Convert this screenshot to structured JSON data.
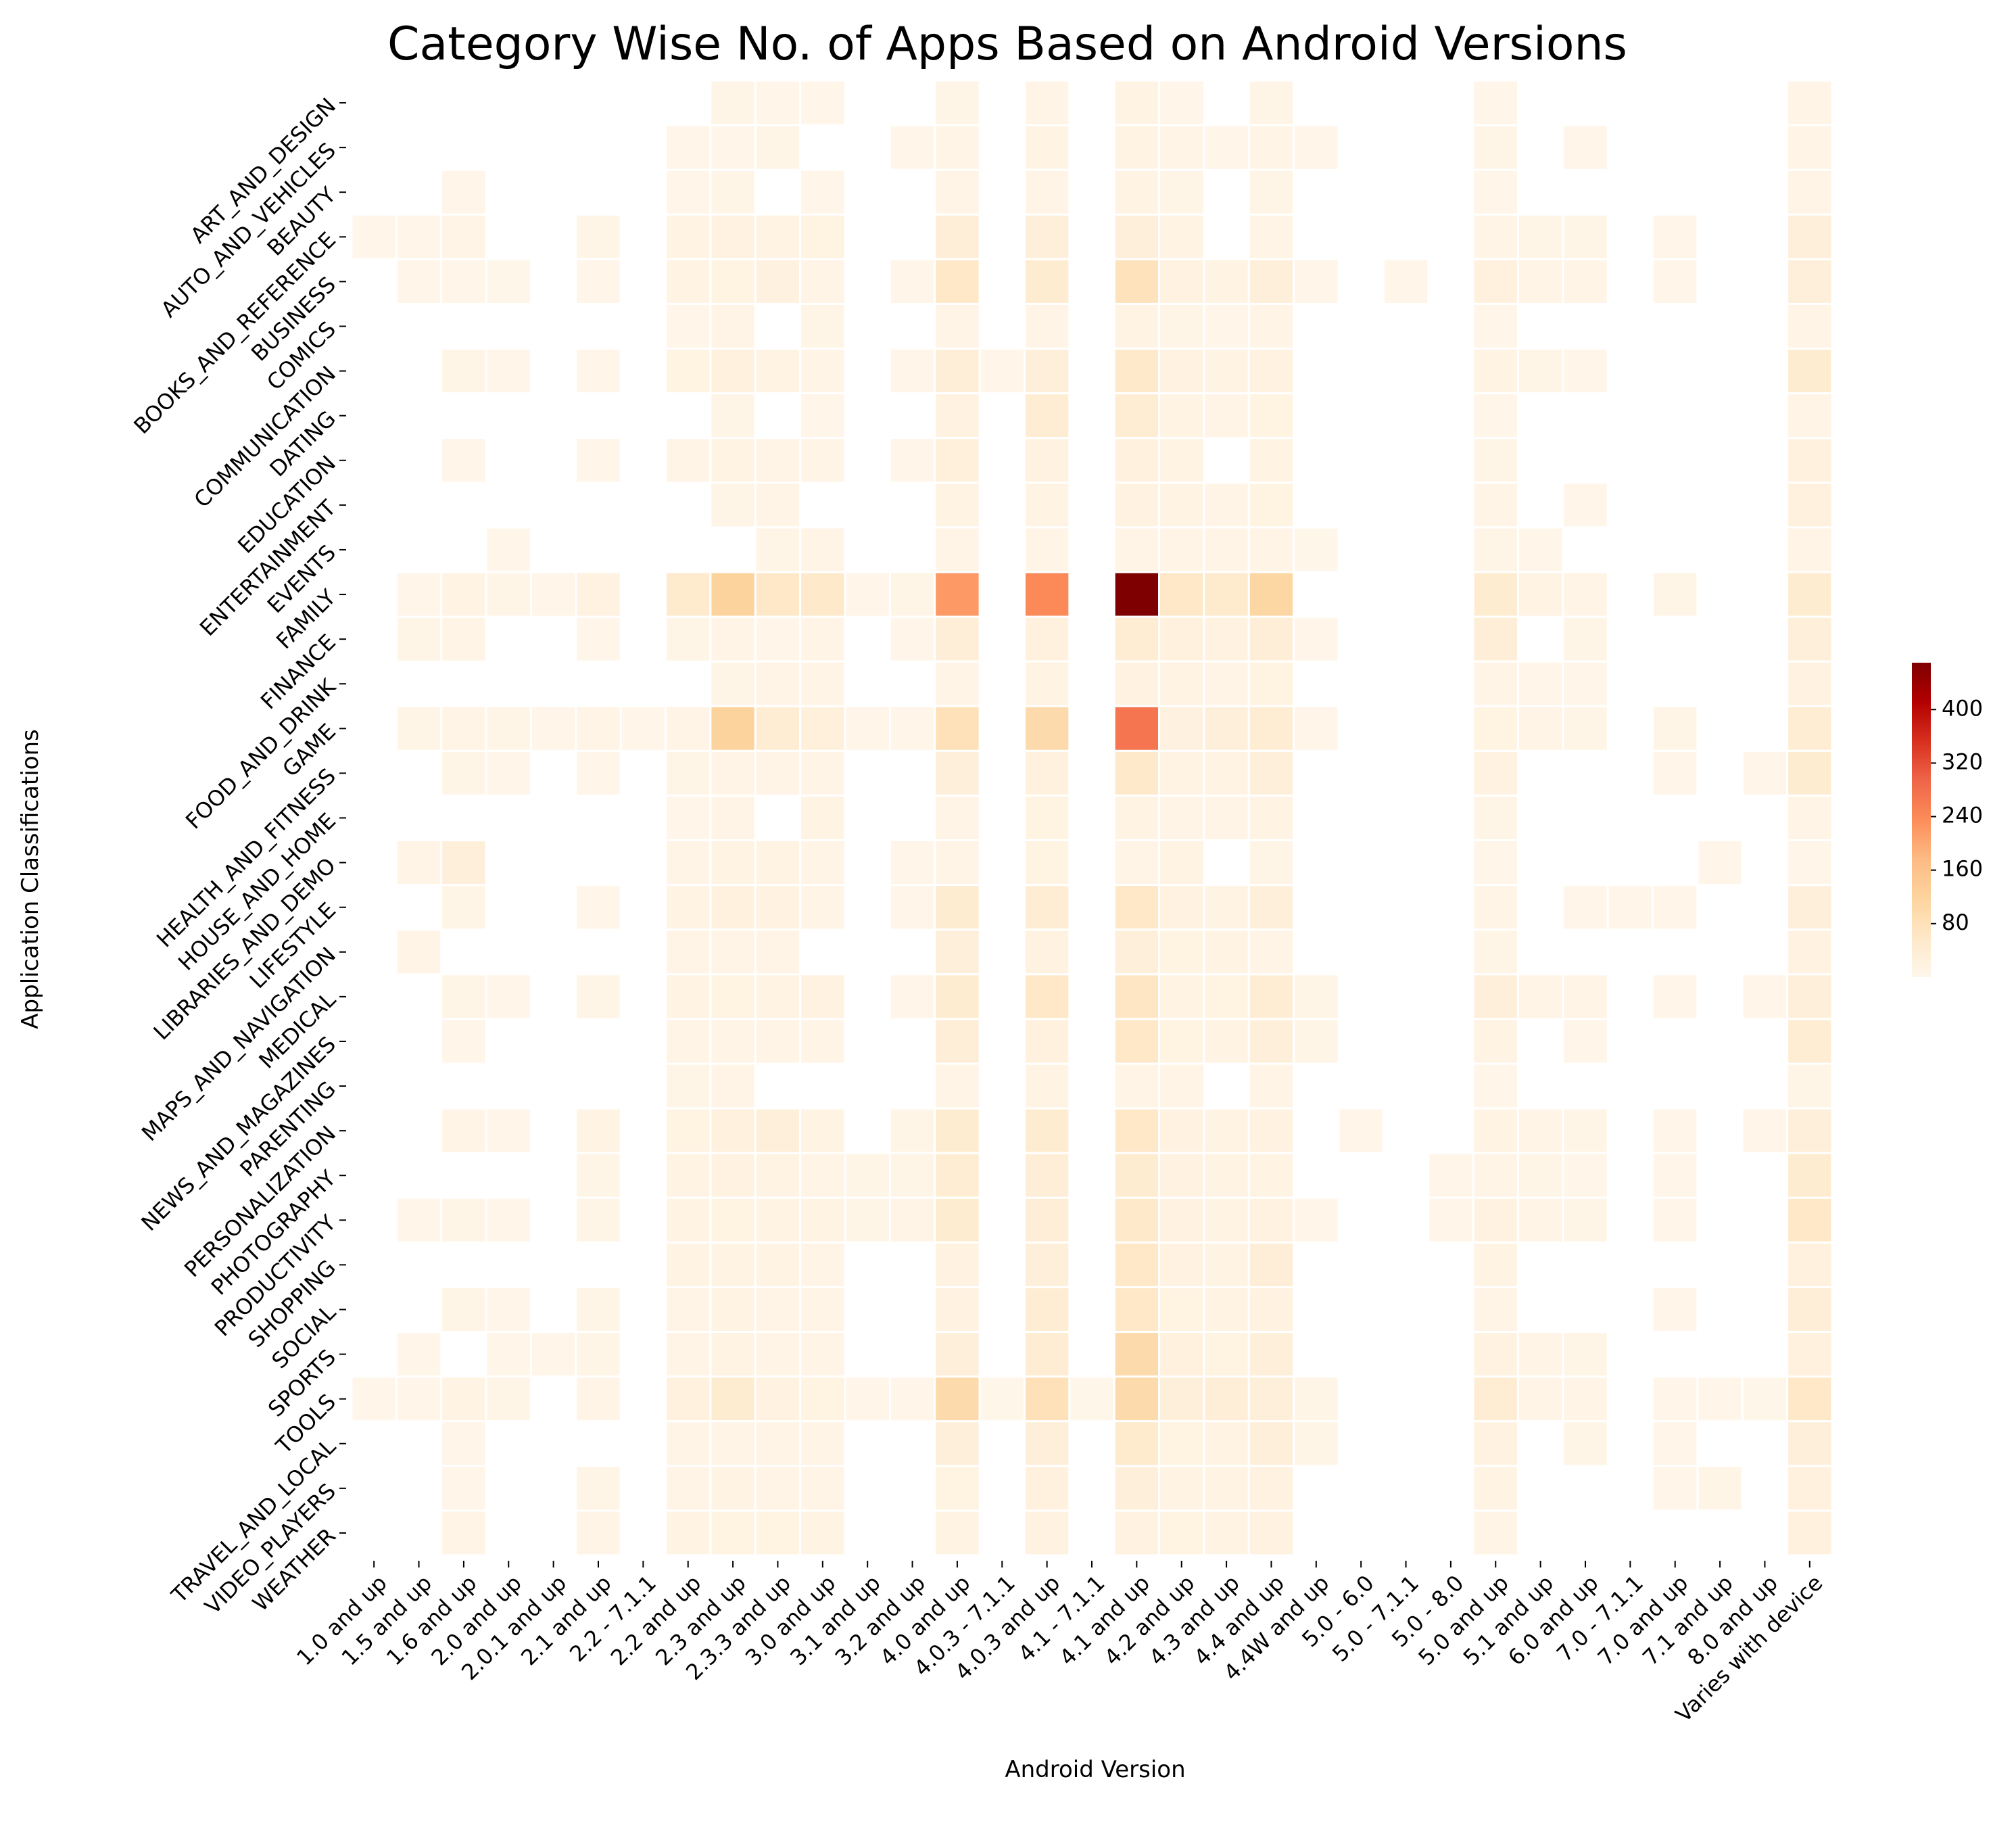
{
  "chart_data": {
    "type": "heatmap",
    "title": "Category Wise No. of Apps Based on Android Versions",
    "xlabel": "Android Version",
    "ylabel": "Application Classifications",
    "colormap": "OrRd",
    "vmin": 0,
    "vmax": 470,
    "colorbar_ticks": [
      80,
      160,
      240,
      320,
      400
    ],
    "x_categories": [
      "1.0 and up",
      "1.5 and up",
      "1.6 and up",
      "2.0 and up",
      "2.0.1 and up",
      "2.1 and up",
      "2.2 - 7.1.1",
      "2.2 and up",
      "2.3 and up",
      "2.3.3 and up",
      "3.0 and up",
      "3.1 and up",
      "3.2 and up",
      "4.0 and up",
      "4.0.3 - 7.1.1",
      "4.0.3 and up",
      "4.1 - 7.1.1",
      "4.1 and up",
      "4.2 and up",
      "4.3 and up",
      "4.4 and up",
      "4.4W and up",
      "5.0 - 6.0",
      "5.0 - 7.1.1",
      "5.0 - 8.0",
      "5.0 and up",
      "5.1 and up",
      "6.0 and up",
      "7.0 - 7.1.1",
      "7.0 and up",
      "7.1 and up",
      "8.0 and up",
      "Varies with device"
    ],
    "y_categories": [
      "ART_AND_DESIGN",
      "AUTO_AND_VEHICLES",
      "BEAUTY",
      "BOOKS_AND_REFERENCE",
      "BUSINESS",
      "COMICS",
      "COMMUNICATION",
      "DATING",
      "EDUCATION",
      "ENTERTAINMENT",
      "EVENTS",
      "FAMILY",
      "FINANCE",
      "FOOD_AND_DRINK",
      "GAME",
      "HEALTH_AND_FITNESS",
      "HOUSE_AND_HOME",
      "LIBRARIES_AND_DEMO",
      "LIFESTYLE",
      "MAPS_AND_NAVIGATION",
      "MEDICAL",
      "NEWS_AND_MAGAZINES",
      "PARENTING",
      "PERSONALIZATION",
      "PHOTOGRAPHY",
      "PRODUCTIVITY",
      "SHOPPING",
      "SOCIAL",
      "SPORTS",
      "TOOLS",
      "TRAVEL_AND_LOCAL",
      "VIDEO_PLAYERS",
      "WEATHER"
    ],
    "values": [
      [
        0,
        0,
        0,
        0,
        0,
        0,
        0,
        0,
        8,
        7,
        6,
        0,
        0,
        9,
        0,
        12,
        0,
        15,
        6,
        0,
        8,
        0,
        0,
        0,
        0,
        7,
        0,
        0,
        0,
        0,
        0,
        0,
        10
      ],
      [
        0,
        0,
        0,
        0,
        0,
        0,
        0,
        6,
        7,
        8,
        0,
        0,
        5,
        12,
        0,
        14,
        0,
        15,
        10,
        7,
        12,
        7,
        0,
        0,
        0,
        8,
        0,
        7,
        0,
        0,
        0,
        0,
        12
      ],
      [
        0,
        0,
        6,
        0,
        0,
        0,
        0,
        6,
        8,
        0,
        6,
        0,
        0,
        10,
        0,
        12,
        0,
        14,
        8,
        0,
        9,
        0,
        0,
        0,
        0,
        6,
        0,
        0,
        0,
        0,
        0,
        0,
        10
      ],
      [
        5,
        6,
        12,
        0,
        0,
        8,
        0,
        14,
        18,
        14,
        16,
        0,
        0,
        35,
        0,
        30,
        0,
        30,
        14,
        0,
        12,
        0,
        0,
        0,
        0,
        10,
        8,
        8,
        0,
        6,
        0,
        0,
        30
      ],
      [
        0,
        6,
        7,
        4,
        0,
        6,
        0,
        14,
        16,
        22,
        12,
        0,
        5,
        60,
        0,
        45,
        0,
        75,
        18,
        14,
        30,
        6,
        0,
        5,
        0,
        25,
        12,
        10,
        0,
        6,
        0,
        0,
        30
      ],
      [
        0,
        0,
        0,
        0,
        0,
        0,
        0,
        7,
        10,
        0,
        8,
        0,
        0,
        10,
        0,
        12,
        0,
        15,
        8,
        7,
        10,
        0,
        0,
        0,
        0,
        6,
        0,
        0,
        0,
        0,
        0,
        0,
        12
      ],
      [
        0,
        0,
        8,
        6,
        0,
        7,
        0,
        16,
        25,
        15,
        12,
        0,
        7,
        35,
        5,
        30,
        0,
        55,
        18,
        14,
        20,
        0,
        0,
        0,
        0,
        14,
        8,
        7,
        0,
        0,
        0,
        0,
        45
      ],
      [
        0,
        0,
        0,
        0,
        0,
        0,
        0,
        0,
        8,
        0,
        7,
        0,
        0,
        18,
        0,
        40,
        0,
        40,
        14,
        10,
        16,
        0,
        0,
        0,
        0,
        7,
        0,
        0,
        0,
        0,
        0,
        0,
        12
      ],
      [
        0,
        0,
        6,
        0,
        0,
        6,
        0,
        10,
        14,
        10,
        12,
        0,
        6,
        28,
        0,
        18,
        0,
        25,
        14,
        0,
        15,
        0,
        0,
        0,
        0,
        8,
        0,
        0,
        0,
        0,
        0,
        0,
        25
      ],
      [
        0,
        0,
        0,
        0,
        0,
        0,
        0,
        0,
        8,
        10,
        0,
        0,
        0,
        14,
        0,
        15,
        0,
        20,
        15,
        10,
        16,
        0,
        0,
        0,
        0,
        10,
        0,
        5,
        0,
        0,
        0,
        0,
        25
      ],
      [
        0,
        0,
        0,
        5,
        0,
        0,
        0,
        0,
        0,
        9,
        10,
        0,
        0,
        10,
        0,
        10,
        0,
        12,
        10,
        10,
        10,
        4,
        0,
        0,
        0,
        8,
        5,
        0,
        0,
        0,
        0,
        0,
        12
      ],
      [
        0,
        7,
        15,
        8,
        6,
        18,
        0,
        50,
        120,
        60,
        55,
        7,
        8,
        220,
        0,
        240,
        0,
        470,
        60,
        50,
        110,
        0,
        0,
        0,
        0,
        45,
        14,
        10,
        0,
        8,
        0,
        0,
        45
      ],
      [
        0,
        8,
        10,
        0,
        0,
        6,
        0,
        8,
        10,
        7,
        10,
        0,
        5,
        35,
        0,
        25,
        0,
        40,
        25,
        20,
        35,
        6,
        0,
        0,
        0,
        35,
        0,
        8,
        0,
        0,
        0,
        0,
        30
      ],
      [
        0,
        0,
        0,
        0,
        0,
        0,
        0,
        0,
        8,
        10,
        10,
        0,
        0,
        12,
        0,
        14,
        0,
        20,
        14,
        12,
        16,
        0,
        0,
        0,
        0,
        10,
        6,
        6,
        0,
        0,
        0,
        0,
        18
      ],
      [
        0,
        8,
        10,
        8,
        6,
        12,
        5,
        10,
        120,
        40,
        28,
        7,
        6,
        80,
        0,
        100,
        0,
        270,
        22,
        30,
        40,
        6,
        0,
        0,
        0,
        16,
        10,
        8,
        0,
        8,
        0,
        0,
        40
      ],
      [
        0,
        0,
        8,
        6,
        0,
        7,
        0,
        8,
        12,
        12,
        10,
        0,
        0,
        30,
        0,
        25,
        0,
        55,
        15,
        14,
        30,
        0,
        0,
        0,
        0,
        20,
        0,
        0,
        0,
        7,
        0,
        5,
        45
      ],
      [
        0,
        0,
        0,
        0,
        0,
        0,
        0,
        7,
        10,
        0,
        14,
        0,
        0,
        12,
        0,
        16,
        0,
        15,
        12,
        10,
        14,
        0,
        0,
        0,
        0,
        8,
        0,
        0,
        0,
        0,
        0,
        0,
        12
      ],
      [
        0,
        10,
        30,
        0,
        0,
        0,
        0,
        10,
        14,
        14,
        12,
        0,
        7,
        12,
        0,
        16,
        0,
        12,
        14,
        0,
        8,
        0,
        0,
        0,
        0,
        6,
        0,
        0,
        0,
        0,
        5,
        0,
        6
      ],
      [
        0,
        0,
        8,
        0,
        0,
        7,
        0,
        14,
        25,
        18,
        12,
        0,
        6,
        45,
        0,
        40,
        0,
        60,
        20,
        15,
        30,
        0,
        0,
        0,
        0,
        12,
        0,
        6,
        5,
        6,
        0,
        0,
        30
      ],
      [
        0,
        10,
        0,
        0,
        0,
        0,
        0,
        10,
        12,
        10,
        0,
        0,
        0,
        30,
        0,
        20,
        0,
        30,
        16,
        14,
        12,
        0,
        0,
        0,
        0,
        8,
        0,
        0,
        0,
        0,
        0,
        0,
        18
      ],
      [
        0,
        0,
        8,
        6,
        0,
        8,
        0,
        14,
        16,
        14,
        18,
        0,
        7,
        45,
        0,
        60,
        0,
        65,
        14,
        16,
        40,
        8,
        0,
        0,
        0,
        30,
        10,
        10,
        0,
        7,
        0,
        6,
        30
      ],
      [
        0,
        0,
        6,
        0,
        0,
        0,
        0,
        10,
        12,
        12,
        10,
        0,
        0,
        35,
        0,
        25,
        0,
        60,
        16,
        14,
        30,
        8,
        0,
        0,
        0,
        15,
        0,
        6,
        0,
        0,
        0,
        0,
        40
      ],
      [
        0,
        0,
        0,
        0,
        0,
        0,
        0,
        8,
        10,
        0,
        0,
        0,
        0,
        12,
        0,
        14,
        0,
        12,
        10,
        0,
        10,
        0,
        0,
        0,
        0,
        6,
        0,
        0,
        0,
        0,
        0,
        0,
        8
      ],
      [
        0,
        0,
        10,
        7,
        0,
        14,
        0,
        16,
        24,
        30,
        14,
        0,
        8,
        45,
        0,
        45,
        0,
        60,
        18,
        15,
        20,
        0,
        7,
        0,
        0,
        14,
        10,
        8,
        0,
        7,
        0,
        6,
        30
      ],
      [
        0,
        0,
        0,
        0,
        0,
        8,
        0,
        14,
        20,
        15,
        12,
        8,
        8,
        40,
        0,
        35,
        0,
        45,
        18,
        14,
        14,
        0,
        0,
        0,
        5,
        12,
        8,
        6,
        0,
        6,
        0,
        0,
        45
      ],
      [
        0,
        7,
        8,
        6,
        0,
        8,
        0,
        14,
        16,
        14,
        14,
        8,
        10,
        45,
        0,
        35,
        0,
        55,
        18,
        14,
        20,
        6,
        0,
        0,
        6,
        18,
        10,
        8,
        0,
        7,
        0,
        0,
        60
      ],
      [
        0,
        0,
        0,
        0,
        0,
        0,
        0,
        14,
        14,
        14,
        12,
        0,
        0,
        20,
        0,
        30,
        0,
        60,
        20,
        14,
        35,
        0,
        0,
        0,
        0,
        14,
        0,
        0,
        0,
        0,
        0,
        0,
        25
      ],
      [
        0,
        0,
        8,
        6,
        0,
        8,
        0,
        12,
        14,
        12,
        12,
        0,
        0,
        18,
        0,
        40,
        0,
        60,
        16,
        14,
        18,
        0,
        0,
        0,
        0,
        10,
        0,
        0,
        0,
        6,
        0,
        0,
        35
      ],
      [
        0,
        7,
        0,
        6,
        5,
        8,
        0,
        10,
        14,
        12,
        12,
        0,
        0,
        30,
        0,
        40,
        0,
        100,
        25,
        16,
        30,
        0,
        0,
        0,
        0,
        20,
        10,
        8,
        0,
        0,
        0,
        0,
        25
      ],
      [
        5,
        7,
        14,
        8,
        0,
        12,
        0,
        25,
        45,
        18,
        16,
        6,
        6,
        100,
        4,
        80,
        4,
        100,
        30,
        35,
        30,
        8,
        0,
        0,
        0,
        40,
        12,
        10,
        0,
        6,
        5,
        4,
        60
      ],
      [
        0,
        0,
        6,
        0,
        0,
        0,
        0,
        10,
        12,
        12,
        10,
        0,
        0,
        30,
        0,
        30,
        0,
        50,
        16,
        14,
        30,
        8,
        0,
        0,
        0,
        18,
        0,
        8,
        0,
        6,
        0,
        0,
        30
      ],
      [
        0,
        0,
        6,
        0,
        0,
        8,
        0,
        10,
        14,
        12,
        12,
        0,
        0,
        16,
        0,
        25,
        0,
        30,
        15,
        14,
        20,
        0,
        0,
        0,
        0,
        14,
        0,
        0,
        0,
        6,
        8,
        0,
        25
      ],
      [
        0,
        0,
        12,
        0,
        0,
        10,
        0,
        14,
        16,
        16,
        14,
        0,
        0,
        15,
        0,
        20,
        0,
        20,
        16,
        14,
        20,
        0,
        0,
        0,
        0,
        12,
        0,
        0,
        0,
        0,
        0,
        0,
        25
      ]
    ]
  }
}
